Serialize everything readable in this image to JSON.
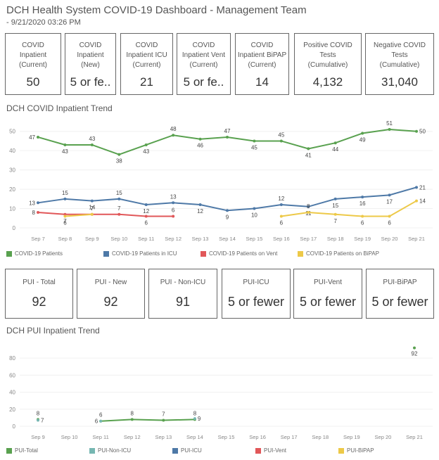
{
  "header": {
    "title": "DCH Health System COVID-19 Dashboard - Management Team",
    "subtitle": "- 9/21/2020 03:26 PM"
  },
  "kpis_top": [
    {
      "label": "COVID\nInpatient\n(Current)",
      "value": "50"
    },
    {
      "label": "COVID\nInpatient\n(New)",
      "value": "5 or fe.."
    },
    {
      "label": "COVID\nInpatient ICU\n(Current)",
      "value": "21"
    },
    {
      "label": "COVID\nInpatient Vent\n(Current)",
      "value": "5 or fe.."
    },
    {
      "label": "COVID\nInpatient BiPAP\n(Current)",
      "value": "14"
    },
    {
      "label": "Positive COVID\nTests\n(Cumulative)",
      "value": "4,132"
    },
    {
      "label": "Negative COVID\nTests\n(Cumulative)",
      "value": "31,040"
    }
  ],
  "kpis_pui": [
    {
      "label": "PUI - Total",
      "value": "92"
    },
    {
      "label": "PUI - New",
      "value": "92"
    },
    {
      "label": "PUI - Non-ICU",
      "value": "91"
    },
    {
      "label": "PUI-ICU",
      "value": "5 or fewer"
    },
    {
      "label": "PUI-Vent",
      "value": "5 or fewer"
    },
    {
      "label": "PUI-BiPAP",
      "value": "5 or fewer"
    }
  ],
  "chart_data": [
    {
      "type": "line",
      "title": "DCH COVID Inpatient Trend",
      "xlabel": "",
      "ylabel": "",
      "ylim": [
        0,
        55
      ],
      "yticks": [
        0,
        10,
        20,
        30,
        40,
        50
      ],
      "grid": true,
      "legend_position": "bottom",
      "categories": [
        "Sep 7",
        "Sep 8",
        "Sep 9",
        "Sep 10",
        "Sep 11",
        "Sep 12",
        "Sep 13",
        "Sep 14",
        "Sep 15",
        "Sep 16",
        "Sep 17",
        "Sep 18",
        "Sep 19",
        "Sep 20",
        "Sep 21"
      ],
      "series": [
        {
          "name": "COVID-19 Patients",
          "color": "#59a14f",
          "values": [
            47,
            43,
            43,
            38,
            43,
            48,
            46,
            47,
            45,
            45,
            41,
            44,
            49,
            51,
            50
          ]
        },
        {
          "name": "COVID-19 Patients in ICU",
          "color": "#4e79a7",
          "values": [
            13,
            15,
            14,
            15,
            12,
            13,
            12,
            9,
            10,
            12,
            11,
            15,
            16,
            17,
            21
          ]
        },
        {
          "name": "COVID-19 Patients on Vent",
          "color": "#e15759",
          "values": [
            8,
            7,
            7,
            7,
            6,
            6,
            null,
            null,
            null,
            null,
            null,
            null,
            null,
            null,
            null
          ]
        },
        {
          "name": "COVID-19 Patients on BiPAP",
          "color": "#edc948",
          "values": [
            null,
            6,
            7,
            null,
            null,
            null,
            null,
            null,
            null,
            6,
            8,
            7,
            6,
            6,
            14
          ]
        }
      ]
    },
    {
      "type": "line",
      "title": "DCH PUI Inpatient Trend",
      "xlabel": "",
      "ylabel": "",
      "ylim": [
        0,
        95
      ],
      "yticks": [
        0,
        20,
        40,
        60,
        80
      ],
      "grid": true,
      "legend_position": "bottom",
      "categories": [
        "Sep 9",
        "Sep 10",
        "Sep 11",
        "Sep 12",
        "Sep 13",
        "Sep 14",
        "Sep 15",
        "Sep 16",
        "Sep 17",
        "Sep 18",
        "Sep 19",
        "Sep 20",
        "Sep 21"
      ],
      "series": [
        {
          "name": "PUI-Total",
          "color": "#59a14f",
          "values": [
            8,
            null,
            6,
            8,
            7,
            8,
            null,
            null,
            null,
            null,
            null,
            null,
            92
          ]
        },
        {
          "name": "PUI-Non-ICU",
          "color": "#76b7b2",
          "values": [
            7,
            null,
            6,
            null,
            null,
            9,
            null,
            null,
            null,
            null,
            null,
            null,
            null
          ]
        },
        {
          "name": "PUI-ICU",
          "color": "#4e79a7",
          "values": []
        },
        {
          "name": "PUI-Vent",
          "color": "#e15759",
          "values": []
        },
        {
          "name": "PUI-BiPAP",
          "color": "#edc948",
          "values": []
        }
      ]
    }
  ]
}
